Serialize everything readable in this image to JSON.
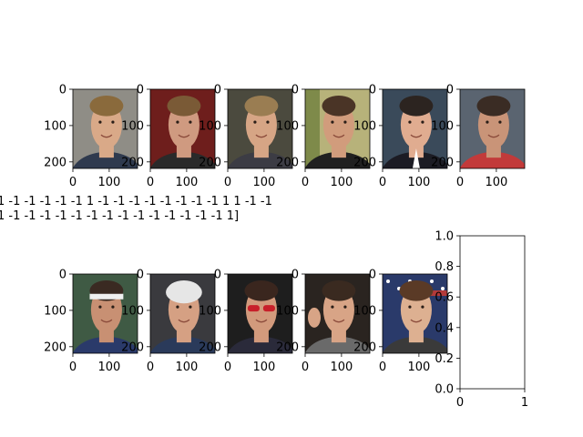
{
  "figure": {
    "title_lines": [
      "1 -1 -1 -1 -1 -1  1 -1 -1 -1 -1 -1 -1 -1 -1  1  1 -1 -1",
      "1 -1 -1 -1 -1 -1 -1 -1 -1 -1 -1 -1 -1 -1 -1  1]"
    ]
  },
  "chart_data": [
    {
      "type": "image",
      "content": "portrait-man-blond-hair",
      "palette": {
        "bg": "#8f8d86",
        "hair": "#8a6a3c",
        "skin": "#d9a988",
        "shirt": "#2f3a4e"
      },
      "xticks": [
        0,
        100
      ],
      "yticks": [
        0,
        100,
        200
      ],
      "xlim": [
        0,
        178
      ],
      "ylim": [
        218,
        0
      ]
    },
    {
      "type": "image",
      "content": "portrait-man-red-background",
      "palette": {
        "bg": "#6e1e1c",
        "hair": "#7a5a36",
        "skin": "#cf9a80",
        "shirt": "#2a2a2a"
      },
      "xticks": [
        0,
        100
      ],
      "yticks": [
        0,
        100,
        200
      ],
      "xlim": [
        0,
        178
      ],
      "ylim": [
        218,
        0
      ]
    },
    {
      "type": "image",
      "content": "portrait-man-short-hair",
      "palette": {
        "bg": "#4b4a3e",
        "hair": "#9a7d52",
        "skin": "#d6a585",
        "shirt": "#3c3c44"
      },
      "xticks": [
        0,
        100
      ],
      "yticks": [
        0,
        100,
        200
      ],
      "xlim": [
        0,
        178
      ],
      "ylim": [
        218,
        0
      ]
    },
    {
      "type": "image",
      "content": "portrait-man-smiling-outdoors",
      "palette": {
        "bg": "#b7b27a",
        "hair": "#4a3426",
        "skin": "#d19c7c",
        "shirt": "#202020"
      },
      "xticks": [
        0,
        100
      ],
      "yticks": [
        0,
        100,
        200
      ],
      "xlim": [
        0,
        178
      ],
      "ylim": [
        218,
        0
      ]
    },
    {
      "type": "image",
      "content": "portrait-man-suit",
      "palette": {
        "bg": "#3a4a5a",
        "hair": "#2c2420",
        "skin": "#e0ac90",
        "shirt": "#1c1c24"
      },
      "xticks": [
        0,
        100
      ],
      "yticks": [
        0,
        100,
        200
      ],
      "xlim": [
        0,
        178
      ],
      "ylim": [
        218,
        0
      ]
    },
    {
      "type": "image",
      "content": "portrait-man-crowd",
      "palette": {
        "bg": "#5a6470",
        "hair": "#3a2c24",
        "skin": "#c99478",
        "shirt": "#c23a3a"
      },
      "xticks": [
        0,
        100
      ],
      "yticks": [
        0,
        100,
        200
      ],
      "xlim": [
        0,
        178
      ],
      "ylim": [
        218,
        0
      ]
    },
    {
      "type": "image",
      "content": "portrait-woman-headband",
      "palette": {
        "bg": "#3f5a44",
        "hair": "#3a2a22",
        "skin": "#c89073",
        "shirt": "#2a3a6a"
      },
      "xticks": [
        0,
        100
      ],
      "yticks": [
        0,
        100,
        200
      ],
      "xlim": [
        0,
        178
      ],
      "ylim": [
        218,
        0
      ]
    },
    {
      "type": "image",
      "content": "portrait-man-cap",
      "palette": {
        "bg": "#3a3a3e",
        "hair": "#e6e6e6",
        "skin": "#d5a083",
        "shirt": "#2a3a5a"
      },
      "xticks": [
        0,
        100
      ],
      "yticks": [
        0,
        100,
        200
      ],
      "xlim": [
        0,
        178
      ],
      "ylim": [
        218,
        0
      ]
    },
    {
      "type": "image",
      "content": "portrait-woman-sunglasses",
      "palette": {
        "bg": "#1e1e1e",
        "hair": "#3a261e",
        "skin": "#d29a7c",
        "shirt": "#2a2a3a"
      },
      "xticks": [
        0,
        100
      ],
      "yticks": [
        0,
        100,
        200
      ],
      "xlim": [
        0,
        178
      ],
      "ylim": [
        218,
        0
      ]
    },
    {
      "type": "image",
      "content": "portrait-man-waving",
      "palette": {
        "bg": "#2a2420",
        "hair": "#3a2a20",
        "skin": "#d8a486",
        "shirt": "#6a6a6a"
      },
      "xticks": [
        0,
        100
      ],
      "yticks": [
        0,
        100,
        200
      ],
      "xlim": [
        0,
        178
      ],
      "ylim": [
        218,
        0
      ]
    },
    {
      "type": "image",
      "content": "portrait-woman-flag",
      "palette": {
        "bg": "#2a3a6a",
        "hair": "#5a3a26",
        "skin": "#ddb091",
        "shirt": "#3a3a3a"
      },
      "xticks": [
        0,
        100
      ],
      "yticks": [
        0,
        100,
        200
      ],
      "xlim": [
        0,
        178
      ],
      "ylim": [
        218,
        0
      ]
    },
    {
      "type": "line",
      "content": "empty-axes",
      "series": [],
      "xticks": [
        0,
        1
      ],
      "yticks": [
        0.0,
        0.2,
        0.4,
        0.6,
        0.8,
        1.0
      ],
      "xlim": [
        0,
        1
      ],
      "ylim": [
        0,
        1
      ]
    }
  ]
}
